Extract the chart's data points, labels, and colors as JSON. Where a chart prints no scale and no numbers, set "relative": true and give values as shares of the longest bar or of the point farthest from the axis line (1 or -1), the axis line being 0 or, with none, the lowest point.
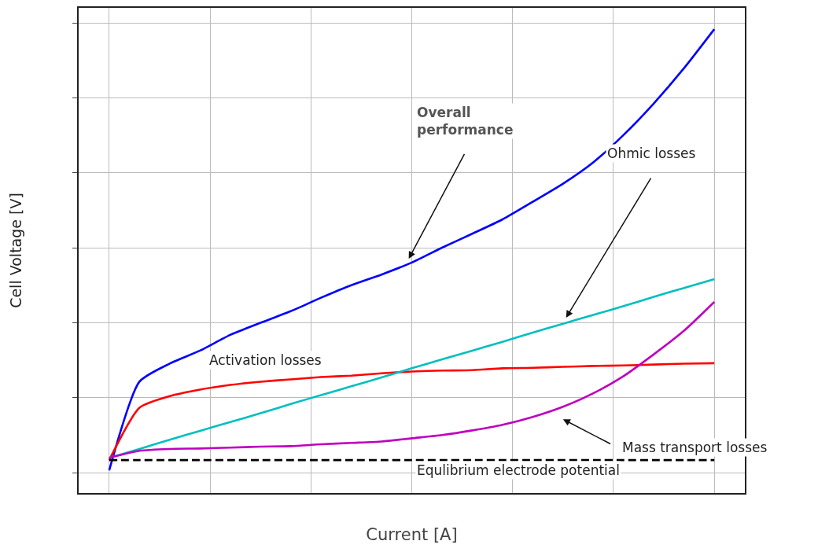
{
  "chart_data": {
    "type": "line",
    "relative": true,
    "xlabel": "Current [A]",
    "ylabel": "Cell Voltage [V]",
    "grid": true,
    "marker": "none",
    "categories": [
      null,
      null,
      null,
      null,
      null,
      null,
      null,
      null,
      null,
      null,
      null,
      null,
      null,
      null,
      null,
      null,
      null,
      null,
      null,
      null,
      null
    ],
    "series": [
      {
        "color": "#0000ff",
        "values": [
          0.049,
          0.24,
          0.279,
          0.307,
          0.341,
          0.367,
          0.392,
          0.421,
          0.448,
          0.471,
          0.497,
          0.529,
          0.559,
          0.59,
          0.628,
          0.667,
          0.713,
          0.772,
          0.84,
          0.916,
          1.0
        ]
      },
      {
        "color": "#ff0000",
        "values": [
          0.071,
          0.184,
          0.209,
          0.223,
          0.233,
          0.24,
          0.245,
          0.25,
          0.253,
          0.258,
          0.262,
          0.264,
          0.265,
          0.269,
          0.27,
          0.272,
          0.274,
          0.275,
          0.277,
          0.279,
          0.28
        ]
      },
      {
        "color": "#00bfbf",
        "values": [
          0.076,
          0.095,
          0.115,
          0.134,
          0.153,
          0.172,
          0.192,
          0.211,
          0.23,
          0.249,
          0.269,
          0.288,
          0.307,
          0.326,
          0.346,
          0.365,
          0.384,
          0.403,
          0.423,
          0.442,
          0.461
        ]
      },
      {
        "color": "#bf00bf",
        "values": [
          0.076,
          0.091,
          0.095,
          0.096,
          0.098,
          0.1,
          0.101,
          0.105,
          0.108,
          0.111,
          0.118,
          0.125,
          0.135,
          0.147,
          0.164,
          0.186,
          0.215,
          0.252,
          0.299,
          0.35,
          0.412
        ]
      },
      {
        "color": "#000000",
        "line_style": "dashed",
        "values": [
          0.071,
          0.071,
          0.071,
          0.071,
          0.071,
          0.071,
          0.071,
          0.071,
          0.071,
          0.071,
          0.071,
          0.071,
          0.071,
          0.071,
          0.071,
          0.071,
          0.071,
          0.071,
          0.071,
          0.071,
          0.071
        ]
      }
    ],
    "annotations": [
      "Overall performance",
      "Ohmic losses",
      "Activation losses",
      "Mass transport losses",
      "Equlibrium electrode potential"
    ]
  }
}
